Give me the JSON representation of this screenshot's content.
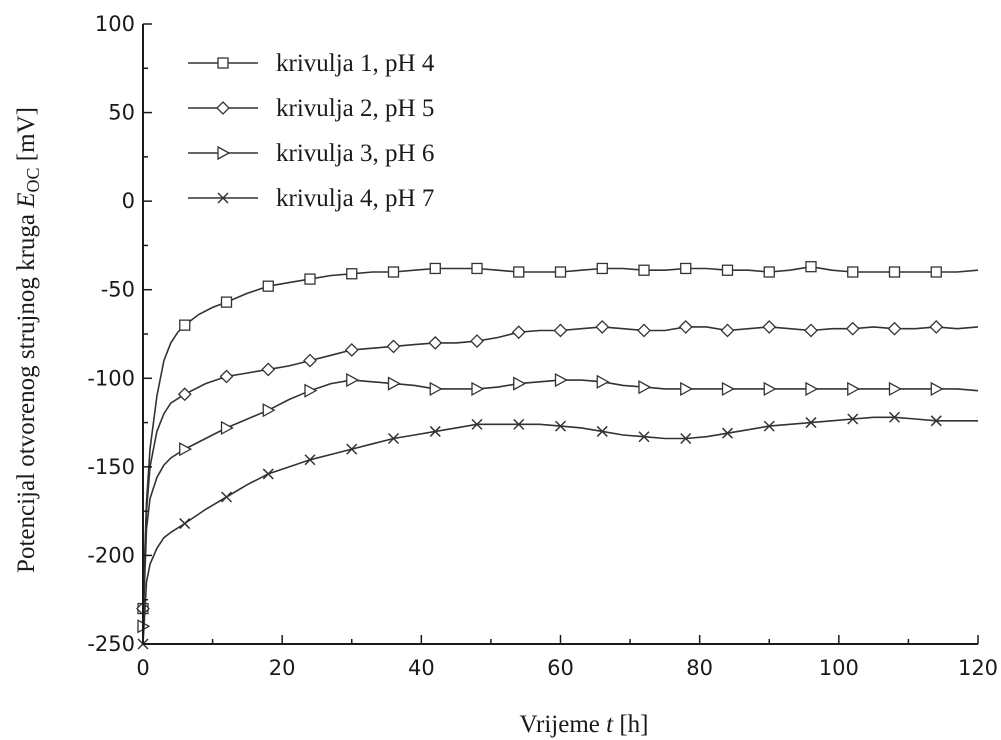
{
  "chart_data": {
    "type": "line",
    "xlabel": {
      "prefix": "Vrijeme ",
      "var": "t",
      "suffix": " [h]"
    },
    "ylabel": {
      "prefix": "Potencijal otvorenog strujnog kruga ",
      "var": "E",
      "sub": "OC",
      "suffix": " [mV]"
    },
    "xlim": [
      0,
      120
    ],
    "ylim": [
      -250,
      100
    ],
    "xticks": [
      0,
      20,
      40,
      60,
      80,
      100,
      120
    ],
    "yticks": [
      100,
      50,
      0,
      -50,
      -100,
      -150,
      -200,
      -250
    ],
    "grid": false,
    "legend_position": "top-left",
    "series": [
      {
        "name": "krivulja 1, pH 4",
        "marker": "square",
        "x": [
          0,
          0.5,
          1,
          2,
          3,
          4,
          5,
          6,
          8,
          10,
          12,
          15,
          18,
          21,
          24,
          27,
          30,
          33,
          36,
          39,
          42,
          45,
          48,
          51,
          54,
          57,
          60,
          63,
          66,
          69,
          72,
          75,
          78,
          81,
          84,
          87,
          90,
          93,
          96,
          99,
          102,
          105,
          108,
          111,
          114,
          117,
          120
        ],
        "y": [
          -230,
          -170,
          -140,
          -110,
          -90,
          -80,
          -74,
          -70,
          -64,
          -60,
          -57,
          -52,
          -48,
          -46,
          -44,
          -42,
          -41,
          -40,
          -40,
          -39,
          -38,
          -38,
          -38,
          -39,
          -40,
          -40,
          -40,
          -39,
          -38,
          -38,
          -39,
          -39,
          -38,
          -38,
          -39,
          -39,
          -40,
          -39,
          -37,
          -39,
          -40,
          -40,
          -40,
          -40,
          -40,
          -40,
          -39
        ]
      },
      {
        "name": "krivulja 2, pH 5",
        "marker": "diamond",
        "x": [
          0,
          0.5,
          1,
          2,
          3,
          4,
          6,
          9,
          12,
          15,
          18,
          21,
          24,
          27,
          30,
          33,
          36,
          39,
          42,
          45,
          48,
          51,
          54,
          57,
          60,
          63,
          66,
          69,
          72,
          75,
          78,
          81,
          84,
          87,
          90,
          93,
          96,
          99,
          102,
          105,
          108,
          111,
          114,
          117,
          120
        ],
        "y": [
          -230,
          -175,
          -150,
          -130,
          -120,
          -114,
          -109,
          -103,
          -99,
          -97,
          -95,
          -93,
          -90,
          -87,
          -84,
          -83,
          -82,
          -81,
          -80,
          -80,
          -79,
          -77,
          -74,
          -73,
          -73,
          -72,
          -71,
          -72,
          -73,
          -73,
          -71,
          -71,
          -73,
          -72,
          -71,
          -72,
          -73,
          -72,
          -72,
          -71,
          -72,
          -72,
          -71,
          -72,
          -71
        ]
      },
      {
        "name": "krivulja 3, pH 6",
        "marker": "triangle-right",
        "x": [
          0,
          0.5,
          1,
          2,
          3,
          4,
          6,
          9,
          12,
          15,
          18,
          21,
          24,
          27,
          30,
          33,
          36,
          39,
          42,
          45,
          48,
          51,
          54,
          57,
          60,
          63,
          66,
          69,
          72,
          75,
          78,
          81,
          84,
          87,
          90,
          93,
          96,
          99,
          102,
          105,
          108,
          111,
          114,
          117,
          120
        ],
        "y": [
          -240,
          -185,
          -168,
          -156,
          -149,
          -145,
          -140,
          -134,
          -128,
          -123,
          -118,
          -112,
          -107,
          -103,
          -101,
          -102,
          -103,
          -104,
          -106,
          -106,
          -106,
          -105,
          -103,
          -102,
          -101,
          -101,
          -102,
          -104,
          -105,
          -106,
          -106,
          -106,
          -106,
          -106,
          -106,
          -106,
          -106,
          -106,
          -106,
          -106,
          -106,
          -106,
          -106,
          -106,
          -107
        ]
      },
      {
        "name": "krivulja 4, pH 7",
        "marker": "x",
        "x": [
          0,
          0.5,
          1,
          2,
          3,
          4,
          6,
          9,
          12,
          15,
          18,
          21,
          24,
          27,
          30,
          33,
          36,
          39,
          42,
          45,
          48,
          51,
          54,
          57,
          60,
          63,
          66,
          69,
          72,
          75,
          78,
          81,
          84,
          87,
          90,
          93,
          96,
          99,
          102,
          105,
          108,
          111,
          114,
          117,
          120
        ],
        "y": [
          -250,
          -215,
          -205,
          -196,
          -190,
          -187,
          -182,
          -174,
          -167,
          -160,
          -154,
          -150,
          -146,
          -143,
          -140,
          -137,
          -134,
          -132,
          -130,
          -128,
          -126,
          -126,
          -126,
          -126,
          -127,
          -128,
          -130,
          -132,
          -133,
          -134,
          -134,
          -133,
          -131,
          -129,
          -127,
          -126,
          -125,
          -124,
          -123,
          -122,
          -122,
          -123,
          -124,
          -124,
          -124
        ]
      }
    ],
    "marker_x": [
      [
        0,
        6,
        12,
        18,
        24,
        30,
        36,
        42,
        48,
        54,
        60,
        66,
        72,
        78,
        84,
        90,
        96,
        102,
        108,
        114
      ],
      [
        0,
        6,
        12,
        18,
        24,
        30,
        36,
        42,
        48,
        54,
        60,
        66,
        72,
        78,
        84,
        90,
        96,
        102,
        108,
        114
      ],
      [
        0,
        6,
        12,
        18,
        24,
        30,
        36,
        42,
        48,
        54,
        60,
        66,
        72,
        78,
        84,
        90,
        96,
        102,
        108,
        114
      ],
      [
        0,
        6,
        12,
        18,
        24,
        30,
        36,
        42,
        48,
        54,
        60,
        66,
        72,
        78,
        84,
        90,
        96,
        102,
        108,
        114
      ]
    ]
  }
}
